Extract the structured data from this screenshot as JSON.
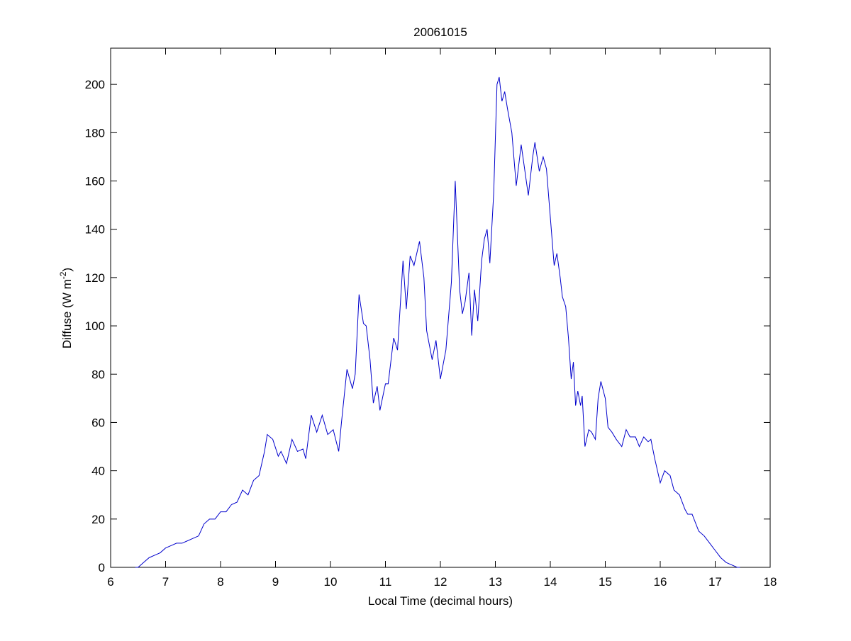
{
  "chart_data": {
    "type": "line",
    "title": "20061015",
    "xlabel": "Local Time (decimal hours)",
    "ylabel": {
      "text": "Diffuse (W m",
      "superscript": "-2",
      "suffix": ")"
    },
    "xlim": [
      6,
      18
    ],
    "ylim": [
      0,
      215
    ],
    "xticks": [
      6,
      7,
      8,
      9,
      10,
      11,
      12,
      13,
      14,
      15,
      16,
      17,
      18
    ],
    "yticks": [
      0,
      20,
      40,
      60,
      80,
      100,
      120,
      140,
      160,
      180,
      200
    ],
    "grid": false,
    "series": [
      {
        "color": "#0000cc",
        "x": [
          6.45,
          6.5,
          6.6,
          6.7,
          6.8,
          6.9,
          7.0,
          7.1,
          7.2,
          7.3,
          7.4,
          7.5,
          7.6,
          7.7,
          7.8,
          7.9,
          8.0,
          8.1,
          8.2,
          8.3,
          8.4,
          8.5,
          8.6,
          8.7,
          8.8,
          8.85,
          8.95,
          9.05,
          9.1,
          9.2,
          9.3,
          9.4,
          9.5,
          9.55,
          9.65,
          9.75,
          9.85,
          9.95,
          10.05,
          10.15,
          10.2,
          10.3,
          10.4,
          10.45,
          10.52,
          10.6,
          10.65,
          10.72,
          10.78,
          10.85,
          10.9,
          11.0,
          11.05,
          11.15,
          11.22,
          11.32,
          11.38,
          11.45,
          11.52,
          11.62,
          11.7,
          11.75,
          11.85,
          11.92,
          12.0,
          12.1,
          12.2,
          12.27,
          12.35,
          12.4,
          12.45,
          12.52,
          12.57,
          12.62,
          12.68,
          12.75,
          12.8,
          12.85,
          12.9,
          12.97,
          13.03,
          13.07,
          13.12,
          13.17,
          13.22,
          13.3,
          13.38,
          13.47,
          13.52,
          13.6,
          13.68,
          13.72,
          13.8,
          13.87,
          13.93,
          14.0,
          14.07,
          14.12,
          14.18,
          14.22,
          14.28,
          14.33,
          14.38,
          14.42,
          14.46,
          14.5,
          14.55,
          14.58,
          14.63,
          14.7,
          14.75,
          14.82,
          14.87,
          14.92,
          15.0,
          15.05,
          15.12,
          15.2,
          15.3,
          15.38,
          15.45,
          15.55,
          15.62,
          15.7,
          15.78,
          15.83,
          15.9,
          16.0,
          16.08,
          16.18,
          16.25,
          16.35,
          16.45,
          16.5,
          16.58,
          16.7,
          16.8,
          16.9,
          17.0,
          17.1,
          17.2,
          17.3,
          17.4,
          17.45
        ],
        "values": [
          0,
          0,
          2,
          4,
          5,
          6,
          8,
          9,
          10,
          10,
          11,
          12,
          13,
          18,
          20,
          20,
          23,
          23,
          26,
          27,
          32,
          30,
          36,
          38,
          48,
          55,
          53,
          46,
          48,
          43,
          53,
          48,
          49,
          45,
          63,
          56,
          63,
          55,
          57,
          48,
          60,
          82,
          74,
          80,
          113,
          101,
          100,
          86,
          68,
          75,
          65,
          76,
          76,
          95,
          90,
          127,
          107,
          129,
          125,
          135,
          120,
          98,
          86,
          94,
          78,
          90,
          118,
          160,
          115,
          105,
          110,
          122,
          96,
          115,
          102,
          127,
          136,
          140,
          126,
          155,
          200,
          203,
          193,
          197,
          190,
          180,
          158,
          175,
          167,
          154,
          170,
          176,
          164,
          170,
          165,
          145,
          125,
          130,
          120,
          112,
          108,
          95,
          78,
          85,
          67,
          73,
          67,
          71,
          50,
          57,
          56,
          53,
          70,
          77,
          70,
          58,
          56,
          53,
          50,
          57,
          54,
          54,
          50,
          54,
          52,
          53,
          45,
          35,
          40,
          38,
          32,
          30,
          24,
          22,
          22,
          15,
          13,
          10,
          7,
          4,
          2,
          1,
          0,
          0
        ]
      }
    ]
  }
}
